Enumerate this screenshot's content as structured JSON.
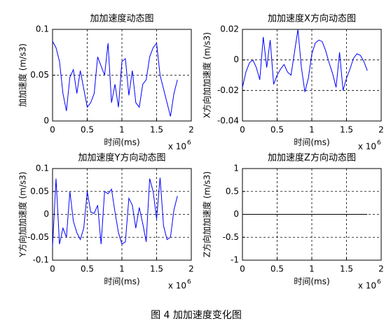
{
  "chart_data": [
    {
      "type": "line",
      "title": "加加速度动态图",
      "y_label": "加加速度 (m/s3)",
      "x_label": "时间(ms)",
      "x_exponent": {
        "base": "x 10",
        "power": "6"
      },
      "x": [
        0,
        0.05,
        0.1,
        0.15,
        0.2,
        0.25,
        0.3,
        0.35,
        0.4,
        0.45,
        0.5,
        0.55,
        0.6,
        0.65,
        0.7,
        0.75,
        0.8,
        0.85,
        0.9,
        0.95,
        1,
        1.05,
        1.1,
        1.15,
        1.2,
        1.25,
        1.3,
        1.35,
        1.4,
        1.45,
        1.5,
        1.55,
        1.6,
        1.65,
        1.7,
        1.75,
        1.8
      ],
      "values": [
        0.087,
        0.08,
        0.065,
        0.03,
        0.011,
        0.048,
        0.056,
        0.03,
        0.055,
        0.035,
        0.015,
        0.02,
        0.03,
        0.07,
        0.06,
        0.05,
        0.085,
        0.02,
        0.04,
        0.015,
        0.065,
        0.068,
        0.028,
        0.055,
        0.02,
        0.015,
        0.04,
        0.045,
        0.07,
        0.08,
        0.085,
        0.05,
        0.035,
        0.02,
        0.005,
        0.03,
        0.045
      ],
      "color": "#0000ff",
      "xlim": [
        0,
        2
      ],
      "xticks": [
        0,
        0.5,
        1,
        1.5,
        2
      ],
      "ylim": [
        0,
        0.1
      ],
      "yticks": [
        0,
        0.05,
        0.1
      ],
      "grid": true
    },
    {
      "type": "line",
      "title": "加加速度X方向动态图",
      "y_label": "X方向加加速度 (m/s3)",
      "x_label": "时间(ms)",
      "x_exponent": {
        "base": "x 10",
        "power": "6"
      },
      "x": [
        0,
        0.05,
        0.1,
        0.15,
        0.2,
        0.25,
        0.3,
        0.35,
        0.4,
        0.45,
        0.5,
        0.55,
        0.6,
        0.65,
        0.7,
        0.75,
        0.8,
        0.85,
        0.9,
        0.95,
        1,
        1.05,
        1.1,
        1.15,
        1.2,
        1.25,
        1.3,
        1.35,
        1.4,
        1.45,
        1.5,
        1.55,
        1.6,
        1.65,
        1.7,
        1.75,
        1.8
      ],
      "values": [
        -0.018,
        -0.008,
        -0.002,
        0,
        -0.005,
        -0.013,
        0.015,
        -0.005,
        0.013,
        -0.016,
        -0.01,
        -0.006,
        -0.003,
        -0.008,
        -0.01,
        0.005,
        0.02,
        -0.005,
        -0.021,
        -0.012,
        0.004,
        0.011,
        0.013,
        0.012,
        0.006,
        -0.002,
        -0.009,
        -0.018,
        0.005,
        -0.02,
        -0.012,
        -0.006,
        0.001,
        0.004,
        0.003,
        -0.001,
        -0.007
      ],
      "color": "#0000ff",
      "xlim": [
        0,
        2
      ],
      "xticks": [
        0,
        0.5,
        1,
        1.5,
        2
      ],
      "ylim": [
        -0.04,
        0.02
      ],
      "yticks": [
        -0.04,
        -0.02,
        0,
        0.02
      ],
      "grid": true
    },
    {
      "type": "line",
      "title": "加加速度Y方向动态图",
      "y_label": "Y方向加加速度 (m/s3)",
      "x_label": "时间(ms)",
      "x_exponent": {
        "base": "x 10",
        "power": "6"
      },
      "x": [
        0,
        0.05,
        0.1,
        0.15,
        0.2,
        0.25,
        0.3,
        0.35,
        0.4,
        0.45,
        0.5,
        0.55,
        0.6,
        0.65,
        0.7,
        0.75,
        0.8,
        0.85,
        0.9,
        0.95,
        1,
        1.05,
        1.1,
        1.15,
        1.2,
        1.25,
        1.3,
        1.35,
        1.4,
        1.45,
        1.5,
        1.55,
        1.6,
        1.65,
        1.7,
        1.75,
        1.8
      ],
      "values": [
        -0.07,
        0.078,
        -0.065,
        -0.03,
        -0.05,
        0.05,
        -0.015,
        -0.04,
        -0.055,
        -0.03,
        0.05,
        0.005,
        0.002,
        0.02,
        -0.065,
        0.05,
        0.045,
        0.055,
        0.005,
        -0.04,
        -0.065,
        -0.06,
        0.035,
        0.02,
        -0.03,
        0.015,
        -0.02,
        -0.06,
        0.078,
        0.05,
        -0.01,
        0.08,
        -0.025,
        -0.055,
        -0.05,
        0.01,
        0.04
      ],
      "color": "#0000ff",
      "xlim": [
        0,
        2
      ],
      "xticks": [
        0,
        0.5,
        1,
        1.5,
        2
      ],
      "ylim": [
        -0.1,
        0.1
      ],
      "yticks": [
        -0.1,
        -0.05,
        0,
        0.05,
        0.1
      ],
      "grid": true
    },
    {
      "type": "line",
      "title": "加加速度Z方向动态图",
      "y_label": "Z方向加加速度 (m/s3)",
      "x_label": "时间(ms)",
      "x_exponent": {
        "base": "x 10",
        "power": "6"
      },
      "x": [
        0,
        0.05,
        0.1,
        0.15,
        0.2,
        0.25,
        0.3,
        0.35,
        0.4,
        0.45,
        0.5,
        0.55,
        0.6,
        0.65,
        0.7,
        0.75,
        0.8,
        0.85,
        0.9,
        0.95,
        1,
        1.05,
        1.1,
        1.15,
        1.2,
        1.25,
        1.3,
        1.35,
        1.4,
        1.45,
        1.5,
        1.55,
        1.6,
        1.65,
        1.7,
        1.75,
        1.8
      ],
      "values": [
        0,
        0,
        0,
        0,
        0,
        0,
        0,
        0,
        0,
        0,
        0,
        0,
        0,
        0,
        0,
        0,
        0,
        0,
        0,
        0,
        0,
        0,
        0,
        0,
        0,
        0,
        0,
        0,
        0,
        0,
        0,
        0,
        0,
        0,
        0,
        0,
        0
      ],
      "color": "#000000",
      "xlim": [
        0,
        2
      ],
      "xticks": [
        0,
        0.5,
        1,
        1.5,
        2
      ],
      "ylim": [
        -1,
        1
      ],
      "yticks": [
        -1,
        -0.5,
        0,
        0.5,
        1
      ],
      "grid": true
    }
  ],
  "caption": "图 4  加加速度变化图"
}
